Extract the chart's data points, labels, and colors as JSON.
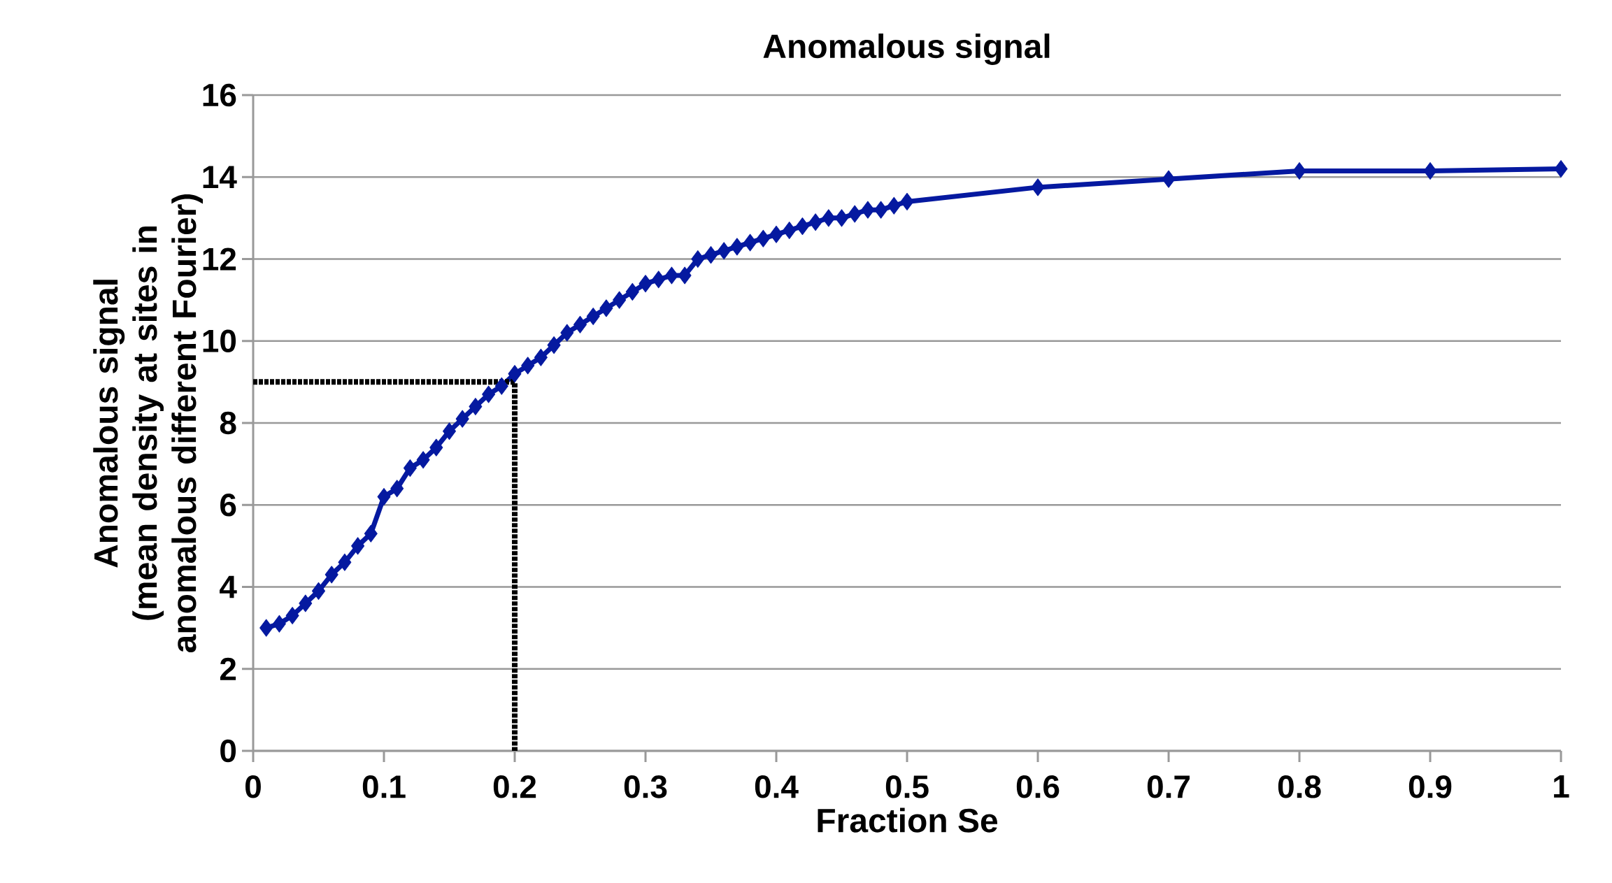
{
  "chart_data": {
    "type": "line",
    "title": "Anomalous signal",
    "xlabel": "Fraction Se",
    "ylabel": "Anomalous signal (mean density at sites in anomalous different Fourier)",
    "xlim": [
      0,
      1
    ],
    "xticks": [
      0,
      0.1,
      0.2,
      0.3,
      0.4,
      0.5,
      0.6,
      0.7,
      0.8,
      0.9,
      1
    ],
    "ylim": [
      0,
      16
    ],
    "yticks": [
      0,
      2,
      4,
      6,
      8,
      10,
      12,
      14,
      16
    ],
    "grid": "y",
    "marker": "diamond",
    "line_style": "solid",
    "series": [
      {
        "color": "#0519a0",
        "x": [
          0.01,
          0.02,
          0.03,
          0.04,
          0.05,
          0.06,
          0.07,
          0.08,
          0.09,
          0.1,
          0.11,
          0.12,
          0.13,
          0.14,
          0.15,
          0.16,
          0.17,
          0.18,
          0.19,
          0.2,
          0.21,
          0.22,
          0.23,
          0.24,
          0.25,
          0.26,
          0.27,
          0.28,
          0.29,
          0.3,
          0.31,
          0.32,
          0.33,
          0.34,
          0.35,
          0.36,
          0.37,
          0.38,
          0.39,
          0.4,
          0.41,
          0.42,
          0.43,
          0.44,
          0.45,
          0.46,
          0.47,
          0.48,
          0.49,
          0.5,
          0.6,
          0.7,
          0.8,
          0.9,
          1
        ],
        "values": [
          3.0,
          3.1,
          3.3,
          3.6,
          3.9,
          4.3,
          4.6,
          5.0,
          5.3,
          6.2,
          6.4,
          6.9,
          7.1,
          7.4,
          7.8,
          8.1,
          8.4,
          8.7,
          8.9,
          9.2,
          9.4,
          9.6,
          9.9,
          10.2,
          10.4,
          10.6,
          10.8,
          11.0,
          11.2,
          11.4,
          11.5,
          11.6,
          11.6,
          12.0,
          12.1,
          12.2,
          12.3,
          12.4,
          12.5,
          12.6,
          12.7,
          12.8,
          12.9,
          13.0,
          13.0,
          13.1,
          13.2,
          13.2,
          13.3,
          13.4,
          13.75,
          13.95,
          14.15,
          14.15,
          14.2
        ]
      },
      {
        "type": "line",
        "color": "#000000",
        "marker": "none",
        "line_style": "dotted",
        "x": [
          0,
          0.2,
          0.2
        ],
        "values": [
          9,
          9,
          0
        ]
      }
    ]
  }
}
